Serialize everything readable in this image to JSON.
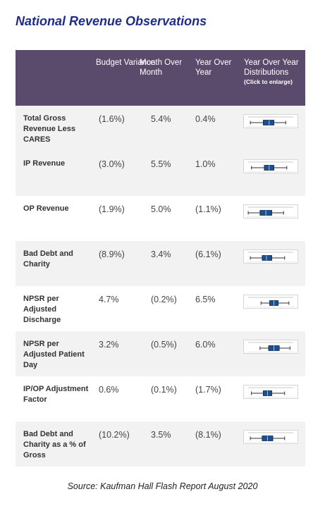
{
  "title": "National Revenue Observations",
  "headers": {
    "budget": "Budget Variance",
    "mom": "Month Over Month",
    "yoy": "Year Over Year",
    "dist": "Year Over Year Distributions",
    "dist_note": "(Click to enlarge)"
  },
  "rows": [
    {
      "label": "Total Gross Revenue Less CARES",
      "budget": "(1.6%)",
      "mom": "5.4%",
      "yoy": "0.4%",
      "box": {
        "q1": 0.36,
        "q3": 0.56,
        "med": 0.47,
        "wmin": 0.12,
        "wmax": 0.78
      }
    },
    {
      "label": "IP Revenue",
      "budget": "(3.0%)",
      "mom": "5.5%",
      "yoy": "1.0%",
      "box": {
        "q1": 0.38,
        "q3": 0.56,
        "med": 0.47,
        "wmin": 0.14,
        "wmax": 0.8
      }
    },
    {
      "label": "OP Revenue",
      "budget": "(1.9%)",
      "mom": "5.0%",
      "yoy": "(1.1%)",
      "box": {
        "q1": 0.3,
        "q3": 0.52,
        "med": 0.41,
        "wmin": 0.08,
        "wmax": 0.74
      }
    },
    {
      "label": "Bad Debt and Charity",
      "budget": "(8.9%)",
      "mom": "3.4%",
      "yoy": "(6.1%)",
      "box": {
        "q1": 0.34,
        "q3": 0.52,
        "med": 0.42,
        "wmin": 0.12,
        "wmax": 0.76
      }
    },
    {
      "label": "NPSR per Adjusted Discharge",
      "budget": "4.7%",
      "mom": "(0.2%)",
      "yoy": "6.5%",
      "box": {
        "q1": 0.48,
        "q3": 0.64,
        "med": 0.56,
        "wmin": 0.32,
        "wmax": 0.84
      }
    },
    {
      "label": "NPSR per Adjusted Patient Day",
      "budget": "3.2%",
      "mom": "(0.5%)",
      "yoy": "6.0%",
      "box": {
        "q1": 0.46,
        "q3": 0.66,
        "med": 0.56,
        "wmin": 0.3,
        "wmax": 0.86
      }
    },
    {
      "label": "IP/OP Adjustment Factor",
      "budget": "0.6%",
      "mom": "(0.1%)",
      "yoy": "(1.7%)",
      "box": {
        "q1": 0.36,
        "q3": 0.52,
        "med": 0.44,
        "wmin": 0.14,
        "wmax": 0.76
      }
    },
    {
      "label": "Bad Debt and Charity as a % of Gross",
      "budget": "(10.2%)",
      "mom": "3.5%",
      "yoy": "(8.1%)",
      "box": {
        "q1": 0.34,
        "q3": 0.54,
        "med": 0.44,
        "wmin": 0.12,
        "wmax": 0.76
      }
    }
  ],
  "source": "Source: Kaufman Hall Flash Report August 2020",
  "colors": {
    "header_bg": "#5a4a6b",
    "title": "#1f2d8a",
    "box_fill": "#1c4f8c"
  }
}
